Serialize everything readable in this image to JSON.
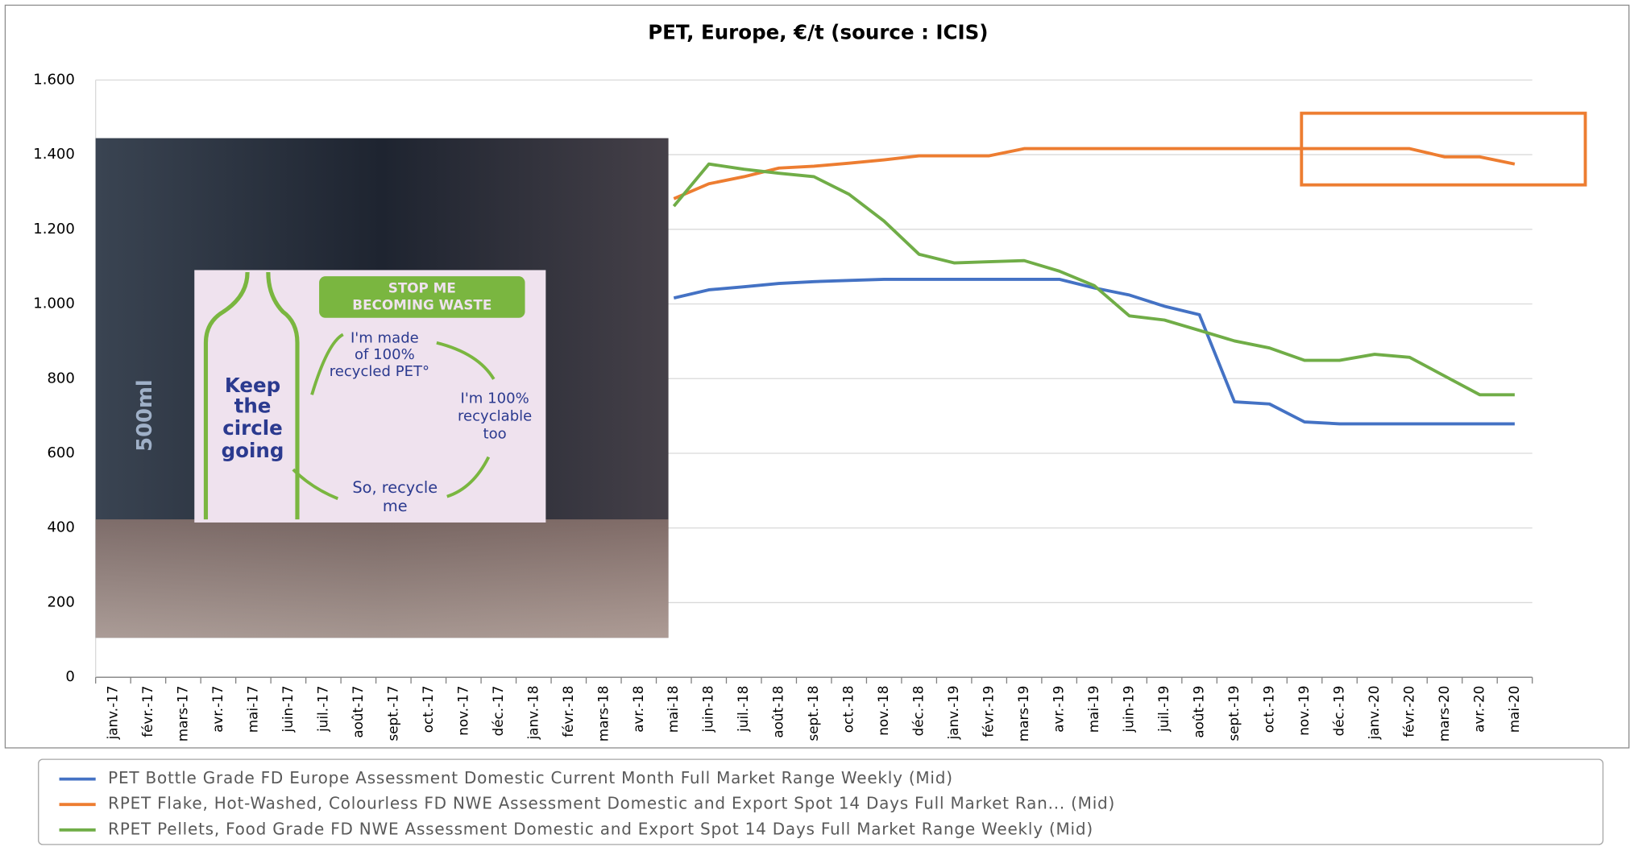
{
  "chart_data": {
    "type": "line",
    "title": "PET, Europe, €/t (source : ICIS)",
    "categories": [
      "janv.-17",
      "févr.-17",
      "mars-17",
      "avr.-17",
      "mai-17",
      "juin-17",
      "juil.-17",
      "août-17",
      "sept.-17",
      "oct.-17",
      "nov.-17",
      "déc.-17",
      "janv.-18",
      "févr.-18",
      "mars-18",
      "avr.-18",
      "mai-18",
      "juin-18",
      "juil.-18",
      "août-18",
      "sept.-18",
      "oct.-18",
      "nov.-18",
      "déc.-18",
      "janv.-19",
      "févr.-19",
      "mars-19",
      "avr.-19",
      "mai-19",
      "juin-19",
      "juil.-19",
      "août-19",
      "sept.-19",
      "oct.-19",
      "nov.-19",
      "déc.-19",
      "janv.-20",
      "févr.-20",
      "mars-20",
      "avr.-20",
      "mai-20"
    ],
    "series": [
      {
        "name": "PET Bottle Grade FD Europe Assessment Domestic Current Month Full Market Range Weekly (Mid)",
        "color": "#4472c4",
        "values": [
          null,
          null,
          null,
          null,
          null,
          null,
          null,
          null,
          null,
          null,
          null,
          null,
          null,
          null,
          null,
          null,
          1016,
          1038,
          1046,
          1055,
          1060,
          1063,
          1066,
          1066,
          1066,
          1066,
          1066,
          1066,
          1043,
          1024,
          994,
          971,
          738,
          732,
          684,
          679,
          679,
          679,
          679,
          679,
          679
        ]
      },
      {
        "name": "RPET Flake, Hot-Washed, Colourless FD NWE Assessment Domestic and Export Spot 14 Days Full Market Ran... (Mid)",
        "color": "#ed7d31",
        "values": [
          null,
          null,
          null,
          null,
          null,
          null,
          null,
          null,
          null,
          null,
          null,
          null,
          null,
          null,
          null,
          null,
          1282,
          1322,
          1341,
          1364,
          1369,
          1377,
          1386,
          1397,
          1397,
          1397,
          1416,
          1416,
          1416,
          1416,
          1416,
          1416,
          1416,
          1416,
          1416,
          1416,
          1416,
          1416,
          1394,
          1394,
          1375
        ]
      },
      {
        "name": "RPET Pellets, Food Grade FD NWE Assessment Domestic and Export Spot 14 Days Full Market Range Weekly (Mid)",
        "color": "#70ad47",
        "values": [
          null,
          null,
          null,
          null,
          null,
          null,
          null,
          null,
          null,
          null,
          null,
          null,
          null,
          null,
          null,
          null,
          1262,
          1375,
          1361,
          1350,
          1341,
          1294,
          1222,
          1133,
          1110,
          1113,
          1116,
          1088,
          1049,
          968,
          957,
          929,
          901,
          882,
          849,
          849,
          865,
          857,
          807,
          757,
          757
        ]
      }
    ],
    "ylim": [
      0,
      1600
    ],
    "yticks": [
      0,
      200,
      400,
      600,
      800,
      {
        "value": 1000,
        "label": "1.000"
      },
      {
        "value": 1200,
        "label": "1.200"
      },
      {
        "value": 1400,
        "label": "1.400"
      },
      {
        "value": 1600,
        "label": "1.600"
      }
    ],
    "grid": true,
    "legend": "bottom",
    "annotations": [
      "STOP ME",
      "BECOMING WASTE",
      "I'm made",
      "of 100%",
      "recycled PET°",
      "I'm 100%",
      "recyclable",
      "too",
      "So, recycle",
      "me",
      "Keep",
      "the",
      "circle",
      "going",
      "500ml"
    ]
  }
}
